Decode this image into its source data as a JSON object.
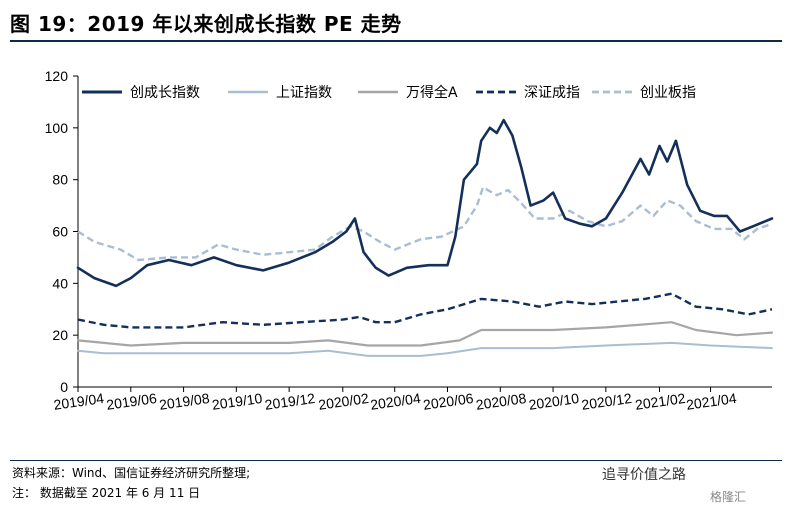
{
  "figure_title": "图 19：2019 年以来创成长指数 PE 走势",
  "footer": {
    "source": "资料来源：Wind、国信证券经济研究所整理;",
    "note": "注：  数据截至 2021 年 6 月 11 日"
  },
  "watermark": {
    "account": "追寻价值之路",
    "brand": "格隆汇"
  },
  "chart_data": {
    "type": "line",
    "title": "",
    "xlabel": "",
    "ylabel": "",
    "ylim": [
      0,
      120
    ],
    "yticks": [
      0,
      20,
      40,
      60,
      80,
      100,
      120
    ],
    "xrange": [
      "2019-04",
      "2021-06-11"
    ],
    "xticks": [
      "2019/04",
      "2019/06",
      "2019/08",
      "2019/10",
      "2019/12",
      "2020/02",
      "2020/04",
      "2020/06",
      "2020/08",
      "2020/10",
      "2020/12",
      "2021/02",
      "2021/04"
    ],
    "grid": false,
    "legend_position": "top",
    "series": [
      {
        "name": "创成长指数",
        "color": "#14305a",
        "style": "solid",
        "width": 2.6,
        "points": [
          [
            "2019-04-01",
            46
          ],
          [
            "2019-04-20",
            42
          ],
          [
            "2019-05-15",
            39
          ],
          [
            "2019-06-01",
            42
          ],
          [
            "2019-06-20",
            47
          ],
          [
            "2019-07-15",
            49
          ],
          [
            "2019-08-10",
            47
          ],
          [
            "2019-09-05",
            50
          ],
          [
            "2019-10-01",
            47
          ],
          [
            "2019-11-01",
            45
          ],
          [
            "2019-12-01",
            48
          ],
          [
            "2019-12-31",
            52
          ],
          [
            "2020-01-20",
            56
          ],
          [
            "2020-02-05",
            60
          ],
          [
            "2020-02-15",
            65
          ],
          [
            "2020-02-25",
            52
          ],
          [
            "2020-03-10",
            46
          ],
          [
            "2020-03-25",
            43
          ],
          [
            "2020-04-15",
            46
          ],
          [
            "2020-05-10",
            47
          ],
          [
            "2020-06-01",
            47
          ],
          [
            "2020-06-10",
            58
          ],
          [
            "2020-06-20",
            80
          ],
          [
            "2020-07-05",
            86
          ],
          [
            "2020-07-10",
            95
          ],
          [
            "2020-07-20",
            100
          ],
          [
            "2020-07-28",
            98
          ],
          [
            "2020-08-05",
            103
          ],
          [
            "2020-08-15",
            97
          ],
          [
            "2020-08-25",
            85
          ],
          [
            "2020-09-05",
            70
          ],
          [
            "2020-09-20",
            72
          ],
          [
            "2020-10-01",
            75
          ],
          [
            "2020-10-15",
            65
          ],
          [
            "2020-11-01",
            63
          ],
          [
            "2020-11-15",
            62
          ],
          [
            "2020-12-01",
            65
          ],
          [
            "2020-12-20",
            75
          ],
          [
            "2021-01-10",
            88
          ],
          [
            "2021-01-20",
            82
          ],
          [
            "2021-02-01",
            93
          ],
          [
            "2021-02-10",
            87
          ],
          [
            "2021-02-20",
            95
          ],
          [
            "2021-03-05",
            78
          ],
          [
            "2021-03-20",
            68
          ],
          [
            "2021-04-05",
            66
          ],
          [
            "2021-04-20",
            66
          ],
          [
            "2021-05-05",
            60
          ],
          [
            "2021-05-20",
            62
          ],
          [
            "2021-06-11",
            65
          ]
        ]
      },
      {
        "name": "上证指数",
        "color": "#a9bdd3",
        "style": "solid",
        "width": 2,
        "points": [
          [
            "2019-04-01",
            14
          ],
          [
            "2019-05-01",
            13
          ],
          [
            "2019-06-01",
            13
          ],
          [
            "2019-08-01",
            13
          ],
          [
            "2019-10-01",
            13
          ],
          [
            "2019-12-01",
            13
          ],
          [
            "2020-01-15",
            14
          ],
          [
            "2020-03-01",
            12
          ],
          [
            "2020-05-01",
            12
          ],
          [
            "2020-06-01",
            13
          ],
          [
            "2020-07-10",
            15
          ],
          [
            "2020-08-15",
            15
          ],
          [
            "2020-10-01",
            15
          ],
          [
            "2020-12-01",
            16
          ],
          [
            "2021-02-15",
            17
          ],
          [
            "2021-04-01",
            16
          ],
          [
            "2021-06-11",
            15
          ]
        ]
      },
      {
        "name": "万得全A",
        "color": "#a6a6a6",
        "style": "solid",
        "width": 2.2,
        "points": [
          [
            "2019-04-01",
            18
          ],
          [
            "2019-05-01",
            17
          ],
          [
            "2019-06-01",
            16
          ],
          [
            "2019-08-01",
            17
          ],
          [
            "2019-10-01",
            17
          ],
          [
            "2019-12-01",
            17
          ],
          [
            "2020-01-15",
            18
          ],
          [
            "2020-03-01",
            16
          ],
          [
            "2020-05-01",
            16
          ],
          [
            "2020-06-15",
            18
          ],
          [
            "2020-07-10",
            22
          ],
          [
            "2020-08-15",
            22
          ],
          [
            "2020-10-01",
            22
          ],
          [
            "2020-12-01",
            23
          ],
          [
            "2021-02-15",
            25
          ],
          [
            "2021-03-15",
            22
          ],
          [
            "2021-05-01",
            20
          ],
          [
            "2021-06-11",
            21
          ]
        ]
      },
      {
        "name": "深证成指",
        "color": "#14305a",
        "style": "dashed",
        "width": 2.4,
        "points": [
          [
            "2019-04-01",
            26
          ],
          [
            "2019-05-01",
            24
          ],
          [
            "2019-06-01",
            23
          ],
          [
            "2019-08-01",
            23
          ],
          [
            "2019-09-15",
            25
          ],
          [
            "2019-11-01",
            24
          ],
          [
            "2019-12-15",
            25
          ],
          [
            "2020-02-01",
            26
          ],
          [
            "2020-02-20",
            27
          ],
          [
            "2020-03-10",
            25
          ],
          [
            "2020-04-01",
            25
          ],
          [
            "2020-05-01",
            28
          ],
          [
            "2020-06-01",
            30
          ],
          [
            "2020-07-10",
            34
          ],
          [
            "2020-08-15",
            33
          ],
          [
            "2020-09-15",
            31
          ],
          [
            "2020-10-15",
            33
          ],
          [
            "2020-11-15",
            32
          ],
          [
            "2020-12-15",
            33
          ],
          [
            "2021-01-15",
            34
          ],
          [
            "2021-02-15",
            36
          ],
          [
            "2021-03-15",
            31
          ],
          [
            "2021-04-15",
            30
          ],
          [
            "2021-05-15",
            28
          ],
          [
            "2021-06-11",
            30
          ]
        ]
      },
      {
        "name": "创业板指",
        "color": "#a9bdd3",
        "style": "dashed",
        "width": 2.4,
        "points": [
          [
            "2019-04-01",
            60
          ],
          [
            "2019-04-20",
            56
          ],
          [
            "2019-05-20",
            53
          ],
          [
            "2019-06-10",
            49
          ],
          [
            "2019-07-15",
            50
          ],
          [
            "2019-08-15",
            50
          ],
          [
            "2019-09-10",
            55
          ],
          [
            "2019-10-01",
            53
          ],
          [
            "2019-11-01",
            51
          ],
          [
            "2019-12-01",
            52
          ],
          [
            "2019-12-31",
            53
          ],
          [
            "2020-01-20",
            58
          ],
          [
            "2020-02-10",
            62
          ],
          [
            "2020-02-25",
            60
          ],
          [
            "2020-03-15",
            56
          ],
          [
            "2020-04-01",
            53
          ],
          [
            "2020-05-01",
            57
          ],
          [
            "2020-05-25",
            58
          ],
          [
            "2020-06-20",
            62
          ],
          [
            "2020-07-05",
            70
          ],
          [
            "2020-07-12",
            77
          ],
          [
            "2020-07-28",
            74
          ],
          [
            "2020-08-10",
            76
          ],
          [
            "2020-08-25",
            71
          ],
          [
            "2020-09-10",
            65
          ],
          [
            "2020-10-01",
            65
          ],
          [
            "2020-10-20",
            68
          ],
          [
            "2020-11-10",
            64
          ],
          [
            "2020-12-01",
            62
          ],
          [
            "2020-12-20",
            64
          ],
          [
            "2021-01-10",
            70
          ],
          [
            "2021-01-25",
            66
          ],
          [
            "2021-02-10",
            72
          ],
          [
            "2021-02-25",
            70
          ],
          [
            "2021-03-15",
            64
          ],
          [
            "2021-04-05",
            61
          ],
          [
            "2021-04-25",
            61
          ],
          [
            "2021-05-10",
            57
          ],
          [
            "2021-05-25",
            61
          ],
          [
            "2021-06-11",
            63
          ]
        ]
      }
    ]
  }
}
